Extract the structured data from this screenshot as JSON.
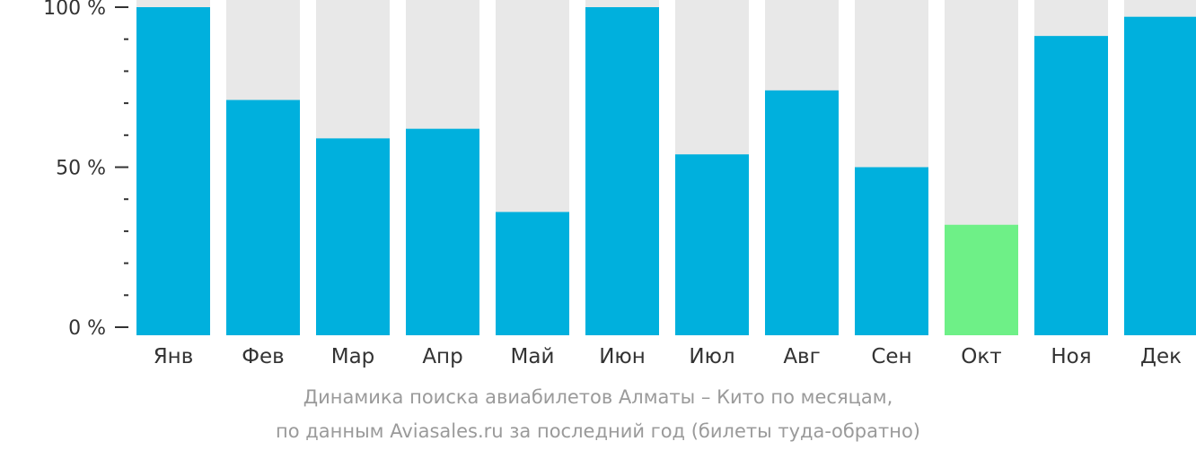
{
  "chart_data": {
    "type": "bar",
    "categories": [
      "Янв",
      "Фев",
      "Мар",
      "Апр",
      "Май",
      "Июн",
      "Июл",
      "Авг",
      "Сен",
      "Окт",
      "Ноя",
      "Дек"
    ],
    "values": [
      100,
      71,
      59,
      62,
      36,
      100,
      54,
      74,
      50,
      32,
      91,
      97
    ],
    "ylim": [
      0,
      100
    ],
    "yticks": [
      {
        "value": 0,
        "label": "0 %"
      },
      {
        "value": 50,
        "label": "50 %"
      },
      {
        "value": 100,
        "label": "100 %"
      }
    ],
    "highlight_index": 9,
    "grid": false,
    "colors": {
      "bar": "#00b0dd",
      "highlight": "#6ef087",
      "background_bar": "#e8e8e8",
      "axis": "#333333",
      "tick_text": "#333333"
    }
  },
  "caption": {
    "line1": "Динамика поиска авиабилетов Алматы – Кито по месяцам,",
    "line2": "по данным Aviasales.ru за последний год (билеты туда-обратно)"
  }
}
